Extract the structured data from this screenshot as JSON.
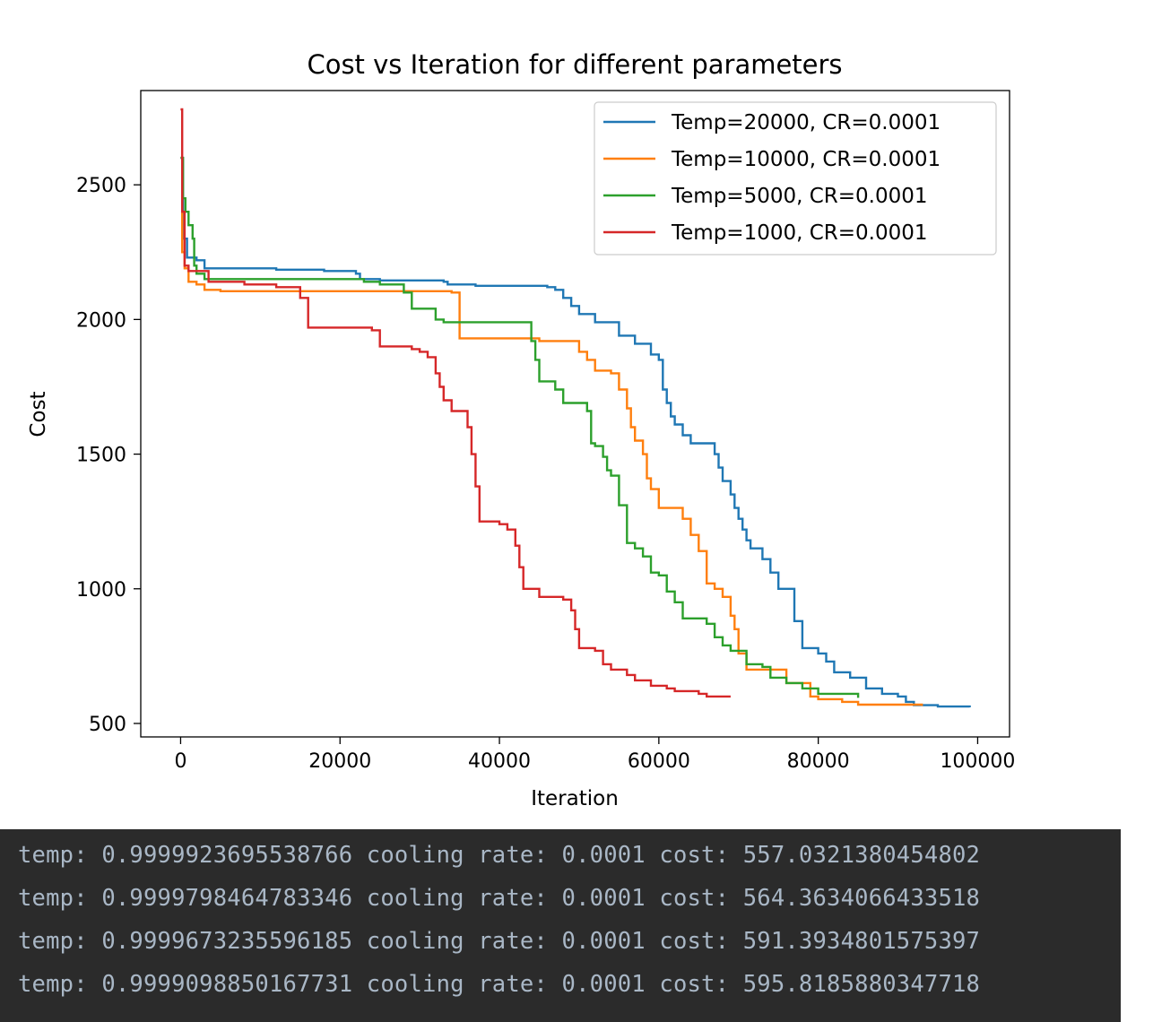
{
  "chart_data": {
    "type": "line",
    "title": "Cost vs Iteration for different parameters",
    "xlabel": "Iteration",
    "ylabel": "Cost",
    "xlim": [
      -5000,
      104000
    ],
    "ylim": [
      450,
      2850
    ],
    "xticks": [
      0,
      20000,
      40000,
      60000,
      80000,
      100000
    ],
    "xtick_labels": [
      "0",
      "20000",
      "40000",
      "60000",
      "80000",
      "100000"
    ],
    "yticks": [
      500,
      1000,
      1500,
      2000,
      2500
    ],
    "ytick_labels": [
      "500",
      "1000",
      "1500",
      "2000",
      "2500"
    ],
    "grid": false,
    "legend_position": "top-right",
    "series": [
      {
        "name": "Temp=20000, CR=0.0001",
        "color": "#1f77b4",
        "points": [
          [
            0,
            2600
          ],
          [
            300,
            2300
          ],
          [
            800,
            2230
          ],
          [
            2000,
            2220
          ],
          [
            3000,
            2190
          ],
          [
            8000,
            2190
          ],
          [
            12000,
            2185
          ],
          [
            18000,
            2180
          ],
          [
            22000,
            2170
          ],
          [
            22500,
            2150
          ],
          [
            25000,
            2145
          ],
          [
            33000,
            2140
          ],
          [
            33500,
            2130
          ],
          [
            37000,
            2125
          ],
          [
            46000,
            2120
          ],
          [
            47000,
            2110
          ],
          [
            48000,
            2080
          ],
          [
            49000,
            2050
          ],
          [
            50000,
            2020
          ],
          [
            52000,
            1990
          ],
          [
            55000,
            1940
          ],
          [
            57000,
            1910
          ],
          [
            59000,
            1870
          ],
          [
            60000,
            1850
          ],
          [
            60500,
            1740
          ],
          [
            61000,
            1690
          ],
          [
            61500,
            1640
          ],
          [
            62000,
            1610
          ],
          [
            63000,
            1570
          ],
          [
            64000,
            1540
          ],
          [
            67000,
            1500
          ],
          [
            67500,
            1450
          ],
          [
            68000,
            1400
          ],
          [
            69000,
            1350
          ],
          [
            69500,
            1300
          ],
          [
            70000,
            1260
          ],
          [
            70500,
            1220
          ],
          [
            71000,
            1180
          ],
          [
            71500,
            1150
          ],
          [
            73000,
            1110
          ],
          [
            74000,
            1060
          ],
          [
            75000,
            1000
          ],
          [
            77000,
            880
          ],
          [
            78000,
            780
          ],
          [
            80000,
            760
          ],
          [
            81000,
            730
          ],
          [
            82000,
            690
          ],
          [
            84000,
            670
          ],
          [
            86000,
            630
          ],
          [
            88000,
            610
          ],
          [
            90000,
            600
          ],
          [
            91000,
            580
          ],
          [
            92000,
            568
          ],
          [
            95000,
            563
          ],
          [
            99000,
            560
          ]
        ]
      },
      {
        "name": "Temp=10000, CR=0.0001",
        "color": "#ff7f0e",
        "points": [
          [
            0,
            2600
          ],
          [
            200,
            2250
          ],
          [
            500,
            2190
          ],
          [
            1000,
            2140
          ],
          [
            2000,
            2130
          ],
          [
            3000,
            2110
          ],
          [
            5000,
            2105
          ],
          [
            34000,
            2100
          ],
          [
            35000,
            1930
          ],
          [
            45000,
            1920
          ],
          [
            50000,
            1880
          ],
          [
            51000,
            1850
          ],
          [
            52000,
            1810
          ],
          [
            54000,
            1800
          ],
          [
            55000,
            1740
          ],
          [
            56000,
            1670
          ],
          [
            56500,
            1600
          ],
          [
            57000,
            1550
          ],
          [
            58000,
            1500
          ],
          [
            58500,
            1410
          ],
          [
            59000,
            1370
          ],
          [
            60000,
            1300
          ],
          [
            63000,
            1260
          ],
          [
            64000,
            1200
          ],
          [
            65000,
            1140
          ],
          [
            66000,
            1020
          ],
          [
            67000,
            1000
          ],
          [
            68000,
            970
          ],
          [
            69000,
            900
          ],
          [
            69500,
            850
          ],
          [
            70000,
            760
          ],
          [
            71000,
            700
          ],
          [
            76000,
            650
          ],
          [
            79000,
            600
          ],
          [
            80000,
            590
          ],
          [
            83000,
            580
          ],
          [
            85000,
            570
          ],
          [
            93000,
            565
          ]
        ]
      },
      {
        "name": "Temp=5000, CR=0.0001",
        "color": "#2ca02c",
        "points": [
          [
            0,
            2600
          ],
          [
            300,
            2450
          ],
          [
            600,
            2400
          ],
          [
            1000,
            2350
          ],
          [
            1500,
            2300
          ],
          [
            1700,
            2200
          ],
          [
            2000,
            2170
          ],
          [
            3000,
            2150
          ],
          [
            8000,
            2150
          ],
          [
            20000,
            2150
          ],
          [
            23000,
            2140
          ],
          [
            25000,
            2130
          ],
          [
            28000,
            2100
          ],
          [
            29000,
            2040
          ],
          [
            32000,
            2000
          ],
          [
            33000,
            1990
          ],
          [
            39000,
            1990
          ],
          [
            44000,
            1920
          ],
          [
            44500,
            1850
          ],
          [
            45000,
            1770
          ],
          [
            47000,
            1740
          ],
          [
            48000,
            1690
          ],
          [
            51000,
            1660
          ],
          [
            51500,
            1540
          ],
          [
            52000,
            1530
          ],
          [
            53000,
            1490
          ],
          [
            53500,
            1440
          ],
          [
            54000,
            1420
          ],
          [
            55000,
            1310
          ],
          [
            56000,
            1170
          ],
          [
            57000,
            1150
          ],
          [
            58000,
            1120
          ],
          [
            59000,
            1060
          ],
          [
            60000,
            1050
          ],
          [
            61000,
            990
          ],
          [
            62000,
            950
          ],
          [
            63000,
            890
          ],
          [
            66000,
            870
          ],
          [
            67000,
            820
          ],
          [
            68000,
            790
          ],
          [
            69000,
            770
          ],
          [
            71000,
            720
          ],
          [
            73000,
            710
          ],
          [
            74000,
            670
          ],
          [
            76000,
            650
          ],
          [
            78000,
            630
          ],
          [
            80000,
            610
          ],
          [
            85000,
            595
          ]
        ]
      },
      {
        "name": "Temp=1000, CR=0.0001",
        "color": "#d62728",
        "points": [
          [
            0,
            2780
          ],
          [
            200,
            2400
          ],
          [
            500,
            2200
          ],
          [
            1000,
            2180
          ],
          [
            3000,
            2180
          ],
          [
            3500,
            2140
          ],
          [
            8000,
            2130
          ],
          [
            12000,
            2120
          ],
          [
            15000,
            2080
          ],
          [
            16000,
            1970
          ],
          [
            24000,
            1960
          ],
          [
            25000,
            1900
          ],
          [
            29000,
            1890
          ],
          [
            30000,
            1880
          ],
          [
            31000,
            1860
          ],
          [
            32000,
            1800
          ],
          [
            32500,
            1750
          ],
          [
            33000,
            1700
          ],
          [
            34000,
            1660
          ],
          [
            36000,
            1600
          ],
          [
            36500,
            1500
          ],
          [
            37000,
            1380
          ],
          [
            37500,
            1250
          ],
          [
            40000,
            1240
          ],
          [
            41000,
            1220
          ],
          [
            42000,
            1160
          ],
          [
            42500,
            1080
          ],
          [
            43000,
            1000
          ],
          [
            45000,
            970
          ],
          [
            48000,
            960
          ],
          [
            49000,
            920
          ],
          [
            49500,
            850
          ],
          [
            50000,
            780
          ],
          [
            52000,
            770
          ],
          [
            53000,
            720
          ],
          [
            54000,
            700
          ],
          [
            56000,
            680
          ],
          [
            57000,
            660
          ],
          [
            59000,
            640
          ],
          [
            61000,
            630
          ],
          [
            62000,
            620
          ],
          [
            65000,
            610
          ],
          [
            66000,
            600
          ],
          [
            69000,
            600
          ]
        ]
      }
    ]
  },
  "console": {
    "lines": [
      "temp: 0.9999923695538766 cooling rate: 0.0001 cost: 557.0321380454802",
      "temp: 0.9999798464783346 cooling rate: 0.0001 cost: 564.3634066433518",
      "temp: 0.9999673235596185 cooling rate: 0.0001 cost: 591.3934801575397",
      "temp: 0.9999098850167731 cooling rate: 0.0001 cost: 595.8185880347718"
    ],
    "bg_color": "#2b2b2b",
    "text_color": "#a9b7c6"
  }
}
